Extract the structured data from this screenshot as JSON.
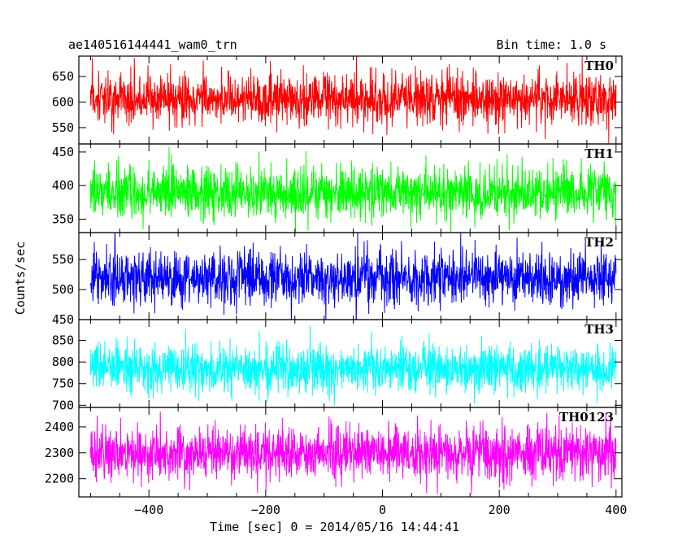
{
  "header": {
    "left_title": "ae140516144441_wam0_trn",
    "right_title": "Bin time: 1.0 s"
  },
  "chart_data": {
    "type": "line",
    "xlabel": "Time [sec] 0 = 2014/05/16 14:44:41",
    "ylabel": "Counts/sec",
    "bin_time_s": 1.0,
    "xlim": [
      -520,
      410
    ],
    "x_ticks": [
      -400,
      -200,
      0,
      200,
      400
    ],
    "x_range_data": [
      -500,
      400
    ],
    "panels": [
      {
        "name": "TH0",
        "color": "#ff0000",
        "ylim": [
          518,
          690
        ],
        "y_ticks": [
          550,
          600,
          650
        ],
        "mean": 607,
        "sigma": 25
      },
      {
        "name": "TH1",
        "color": "#00ff00",
        "ylim": [
          330,
          462
        ],
        "y_ticks": [
          350,
          400,
          450
        ],
        "mean": 390,
        "sigma": 20
      },
      {
        "name": "TH2",
        "color": "#0000ff",
        "ylim": [
          450,
          595
        ],
        "y_ticks": [
          450,
          500,
          550
        ],
        "mean": 520,
        "sigma": 23
      },
      {
        "name": "TH3",
        "color": "#00ffff",
        "ylim": [
          695,
          898
        ],
        "y_ticks": [
          700,
          750,
          800,
          850
        ],
        "mean": 785,
        "sigma": 28
      },
      {
        "name": "TH0123",
        "color": "#ff00ff",
        "ylim": [
          2130,
          2475
        ],
        "y_ticks": [
          2200,
          2300,
          2400
        ],
        "mean": 2300,
        "sigma": 50
      }
    ]
  }
}
